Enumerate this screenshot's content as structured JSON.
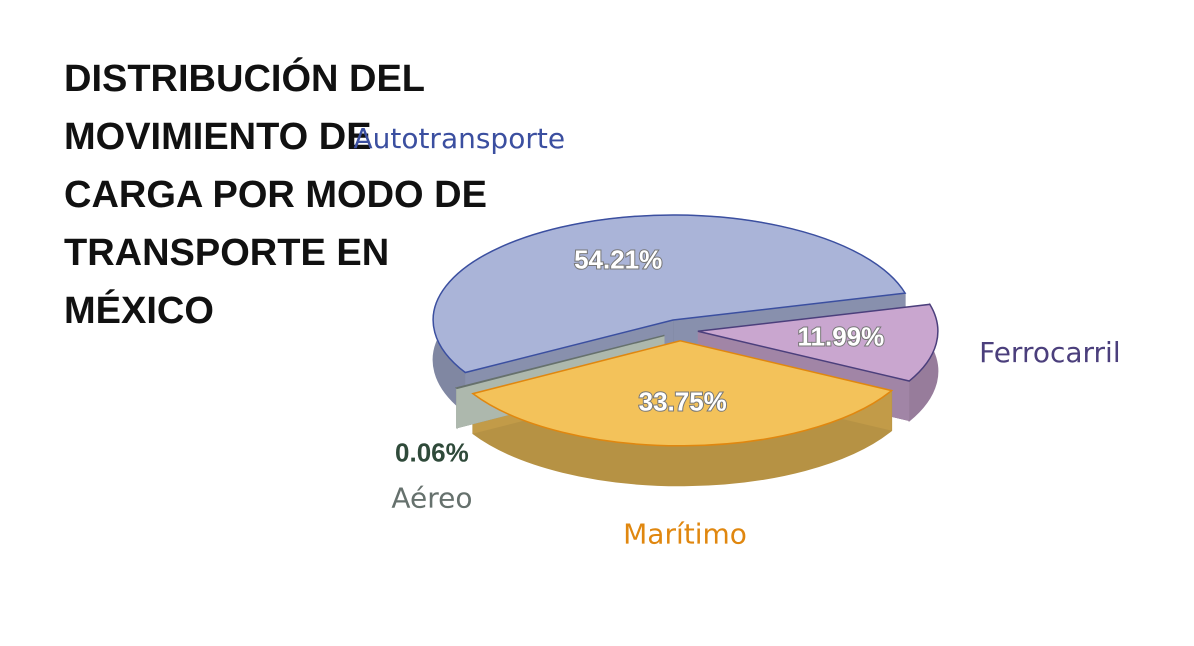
{
  "chart_data": {
    "type": "pie",
    "title": "DISTRIBUCIÓN DEL MOVIMIENTO DE CARGA POR MODO DE TRANSPORTE EN MÉXICO",
    "categories": [
      "Autotransporte",
      "Ferrocarril",
      "Marítimo",
      "Aéreo"
    ],
    "values": [
      54.21,
      11.99,
      33.75,
      0.06
    ],
    "value_labels": [
      "54.21%",
      "11.99%",
      "33.75%",
      "0.06%"
    ],
    "colors": [
      "#aab4d8",
      "#c9a6cf",
      "#f3c25a",
      "#d8e6d8"
    ],
    "label_colors": [
      "#3b4fa0",
      "#4b3f7c",
      "#e0870f",
      "#66716d"
    ]
  }
}
